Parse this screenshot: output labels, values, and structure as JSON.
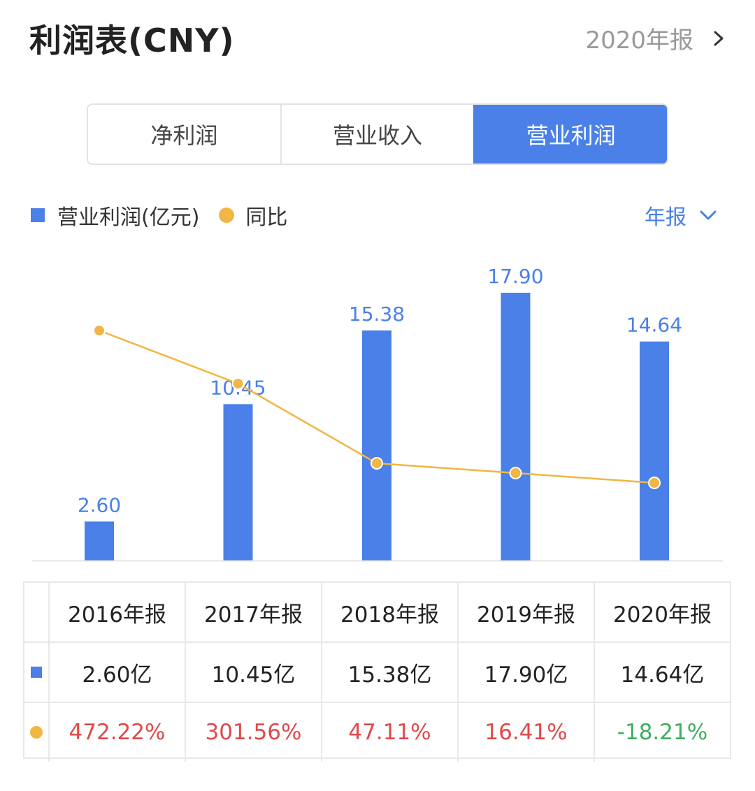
{
  "header": {
    "title": "利润表(CNY)",
    "period_link": "2020年报"
  },
  "tabs": [
    {
      "label": "净利润",
      "active": false
    },
    {
      "label": "营业收入",
      "active": false
    },
    {
      "label": "营业利润",
      "active": true
    }
  ],
  "legend": {
    "bar_label": "营业利润(亿元)",
    "line_label": "同比",
    "period_select": "年报"
  },
  "colors": {
    "accent": "#4a80e8",
    "bar": "#4a80e8",
    "line": "#f1b643",
    "positive": "#e0494b",
    "negative": "#3fae5e"
  },
  "icons": {
    "period_link": "chevron-right-icon",
    "period_select": "chevron-down-icon"
  },
  "chart_data": {
    "type": "bar",
    "categories": [
      "2016年报",
      "2017年报",
      "2018年报",
      "2019年报",
      "2020年报"
    ],
    "series": [
      {
        "name": "营业利润(亿元)",
        "type": "bar",
        "values": [
          2.6,
          10.45,
          15.38,
          17.9,
          14.64
        ],
        "labels": [
          "2.60",
          "10.45",
          "15.38",
          "17.90",
          "14.64"
        ]
      },
      {
        "name": "同比",
        "type": "line",
        "values": [
          472.22,
          301.56,
          47.11,
          16.41,
          -18.21
        ]
      }
    ]
  },
  "table": {
    "headers": [
      "2016年报",
      "2017年报",
      "2018年报",
      "2019年报",
      "2020年报"
    ],
    "profit_row": [
      "2.60亿",
      "10.45亿",
      "15.38亿",
      "17.90亿",
      "14.64亿"
    ],
    "yoy_row": [
      "472.22%",
      "301.56%",
      "47.11%",
      "16.41%",
      "-18.21%"
    ]
  }
}
